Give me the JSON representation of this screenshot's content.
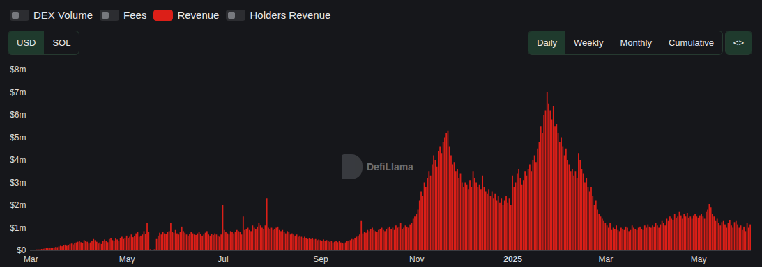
{
  "chart_data": {
    "type": "bar",
    "categories": [
      "Mar",
      null,
      null,
      null,
      null,
      null,
      null,
      null,
      null,
      null,
      null,
      null,
      null,
      null,
      null,
      null,
      null,
      null,
      null,
      null,
      null,
      null,
      null,
      null,
      null,
      null,
      null,
      null,
      null,
      null,
      null,
      null,
      null,
      null,
      null,
      null,
      null,
      null,
      null,
      null,
      null,
      null,
      null,
      null,
      null,
      null,
      null,
      null,
      null,
      null,
      null,
      null,
      null,
      null,
      null,
      null,
      null,
      null,
      null,
      null,
      null,
      "May",
      null,
      null,
      null,
      null,
      null,
      null,
      null,
      null,
      null,
      null,
      null,
      null,
      null,
      null,
      null,
      null,
      null,
      null,
      null,
      null,
      null,
      null,
      null,
      null,
      null,
      null,
      null,
      null,
      null,
      null,
      null,
      null,
      null,
      null,
      null,
      null,
      null,
      null,
      null,
      null,
      null,
      null,
      null,
      null,
      null,
      null,
      null,
      null,
      null,
      null,
      null,
      null,
      null,
      null,
      null,
      null,
      null,
      null,
      null,
      null,
      "Jul",
      null,
      null,
      null,
      null,
      null,
      null,
      null,
      null,
      null,
      null,
      null,
      null,
      null,
      null,
      null,
      null,
      null,
      null,
      null,
      null,
      null,
      null,
      null,
      null,
      null,
      null,
      null,
      null,
      null,
      null,
      null,
      null,
      null,
      null,
      null,
      null,
      null,
      null,
      null,
      null,
      null,
      null,
      null,
      null,
      null,
      null,
      null,
      null,
      null,
      null,
      null,
      null,
      null,
      null,
      null,
      null,
      null,
      null,
      null,
      null,
      null,
      "Sep",
      null,
      null,
      null,
      null,
      null,
      null,
      null,
      null,
      null,
      null,
      null,
      null,
      null,
      null,
      null,
      null,
      null,
      null,
      null,
      null,
      null,
      null,
      null,
      null,
      null,
      null,
      null,
      null,
      null,
      null,
      null,
      null,
      null,
      null,
      null,
      null,
      null,
      null,
      null,
      null,
      null,
      null,
      null,
      null,
      null,
      null,
      null,
      null,
      null,
      null,
      null,
      null,
      null,
      null,
      null,
      null,
      null,
      null,
      null,
      null,
      "Nov",
      null,
      null,
      null,
      null,
      null,
      null,
      null,
      null,
      null,
      null,
      null,
      null,
      null,
      null,
      null,
      null,
      null,
      null,
      null,
      null,
      null,
      null,
      null,
      null,
      null,
      null,
      null,
      null,
      null,
      null,
      null,
      null,
      null,
      null,
      null,
      null,
      null,
      null,
      null,
      null,
      null,
      null,
      null,
      null,
      null,
      null,
      null,
      null,
      null,
      null,
      null,
      null,
      null,
      null,
      null,
      null,
      null,
      null,
      null,
      null,
      "2025",
      null,
      null,
      null,
      null,
      null,
      null,
      null,
      null,
      null,
      null,
      null,
      null,
      null,
      null,
      null,
      null,
      null,
      null,
      null,
      null,
      null,
      null,
      null,
      null,
      null,
      null,
      null,
      null,
      null,
      null,
      null,
      null,
      null,
      null,
      null,
      null,
      null,
      null,
      null,
      null,
      null,
      null,
      null,
      null,
      null,
      null,
      null,
      null,
      null,
      null,
      null,
      null,
      null,
      null,
      null,
      null,
      null,
      null,
      "Mar",
      null,
      null,
      null,
      null,
      null,
      null,
      null,
      null,
      null,
      null,
      null,
      null,
      null,
      null,
      null,
      null,
      null,
      null,
      null,
      null,
      null,
      null,
      null,
      null,
      null,
      null,
      null,
      null,
      null,
      null,
      null,
      null,
      null,
      null,
      null,
      null,
      null,
      null,
      null,
      null,
      null,
      null,
      null,
      null,
      null,
      null,
      null,
      null,
      null,
      null,
      null,
      null,
      null,
      null,
      null,
      null,
      null,
      null,
      "May",
      null,
      null,
      null,
      null,
      null,
      null,
      null,
      null,
      null,
      null,
      null,
      null,
      null,
      null,
      null,
      null,
      null,
      null,
      null,
      null,
      null,
      null,
      null,
      null,
      null,
      null,
      null,
      null,
      null,
      null,
      null,
      null,
      null
    ],
    "series": [
      {
        "name": "Revenue",
        "color": "#dc1f18",
        "values": [
          0.01,
          0.02,
          0.02,
          0.03,
          0.04,
          0.04,
          0.05,
          0.06,
          0.07,
          0.08,
          0.1,
          0.09,
          0.11,
          0.12,
          0.1,
          0.13,
          0.15,
          0.14,
          0.17,
          0.2,
          0.18,
          0.22,
          0.25,
          0.2,
          0.24,
          0.28,
          0.3,
          0.26,
          0.32,
          0.35,
          0.38,
          0.42,
          0.36,
          0.33,
          0.45,
          0.4,
          0.38,
          0.3,
          0.35,
          0.42,
          0.5,
          0.45,
          0.38,
          0.3,
          0.35,
          0.28,
          0.4,
          0.48,
          0.42,
          0.36,
          0.5,
          0.55,
          0.45,
          0.4,
          0.52,
          0.48,
          0.42,
          0.55,
          0.6,
          0.5,
          0.55,
          0.65,
          0.55,
          0.6,
          0.7,
          0.58,
          0.62,
          0.75,
          0.8,
          0.6,
          0.65,
          0.7,
          0.85,
          0.72,
          1.2,
          0.8,
          0.05,
          0.03,
          0.04,
          0.06,
          0.5,
          0.65,
          0.78,
          0.7,
          0.8,
          0.75,
          0.72,
          0.8,
          0.85,
          1.22,
          0.8,
          0.78,
          0.9,
          0.75,
          0.7,
          0.8,
          1.05,
          0.85,
          0.78,
          0.7,
          0.65,
          0.72,
          0.8,
          0.75,
          0.7,
          0.68,
          0.75,
          0.8,
          0.72,
          0.65,
          0.7,
          0.78,
          0.85,
          0.7,
          0.65,
          0.72,
          0.68,
          0.75,
          0.7,
          0.65,
          0.6,
          0.7,
          2.0,
          0.9,
          0.8,
          0.75,
          0.7,
          0.85,
          0.8,
          0.75,
          0.8,
          0.9,
          0.85,
          0.8,
          0.7,
          1.5,
          0.9,
          0.95,
          1.0,
          0.9,
          0.85,
          1.1,
          1.0,
          0.95,
          1.05,
          1.2,
          1.1,
          1.0,
          0.95,
          1.1,
          2.3,
          1.0,
          0.95,
          1.0,
          0.9,
          0.95,
          1.0,
          1.05,
          0.9,
          0.85,
          0.9,
          0.8,
          0.75,
          0.85,
          0.8,
          0.7,
          0.75,
          0.7,
          0.65,
          0.7,
          0.6,
          0.65,
          0.6,
          0.55,
          0.6,
          0.55,
          0.5,
          0.55,
          0.5,
          0.52,
          0.48,
          0.5,
          0.45,
          0.48,
          0.45,
          0.42,
          0.48,
          0.4,
          0.45,
          0.42,
          0.38,
          0.4,
          0.35,
          0.38,
          0.42,
          0.36,
          0.4,
          0.35,
          0.32,
          0.3,
          0.35,
          0.4,
          0.42,
          0.45,
          0.5,
          0.48,
          0.55,
          0.6,
          0.65,
          0.7,
          1.3,
          0.75,
          0.8,
          0.78,
          0.9,
          0.85,
          0.95,
          1.0,
          0.9,
          0.85,
          0.8,
          0.9,
          0.95,
          1.0,
          0.9,
          0.85,
          0.95,
          1.0,
          1.05,
          0.95,
          1.0,
          0.9,
          1.1,
          1.0,
          1.05,
          1.2,
          0.95,
          1.0,
          1.1,
          1.05,
          1.0,
          1.15,
          1.2,
          1.4,
          1.5,
          1.6,
          1.8,
          2.2,
          2.6,
          2.4,
          3.0,
          2.8,
          3.2,
          3.5,
          3.3,
          3.8,
          4.2,
          4.0,
          3.7,
          4.4,
          4.6,
          4.3,
          4.8,
          5.0,
          5.2,
          5.3,
          4.6,
          4.2,
          3.8,
          3.9,
          3.5,
          3.6,
          3.2,
          3.4,
          3.0,
          2.8,
          3.0,
          2.9,
          2.7,
          3.1,
          2.8,
          3.5,
          3.2,
          3.0,
          2.8,
          2.9,
          2.7,
          3.3,
          2.8,
          2.6,
          2.5,
          2.7,
          2.4,
          2.6,
          2.3,
          2.5,
          2.2,
          2.4,
          2.1,
          2.3,
          2.0,
          2.2,
          2.4,
          2.1,
          2.3,
          2.0,
          3.3,
          2.8,
          3.0,
          3.4,
          3.6,
          3.2,
          2.9,
          3.1,
          3.5,
          3.3,
          3.6,
          3.8,
          3.5,
          4.0,
          4.2,
          3.9,
          4.5,
          4.8,
          5.5,
          5.2,
          6.0,
          6.2,
          7.0,
          6.5,
          6.2,
          5.8,
          6.4,
          5.5,
          5.6,
          5.2,
          4.8,
          5.0,
          4.6,
          4.2,
          4.5,
          4.0,
          3.8,
          3.5,
          3.6,
          3.3,
          3.5,
          3.2,
          4.3,
          4.0,
          3.6,
          3.4,
          3.0,
          3.2,
          2.8,
          2.6,
          2.8,
          2.4,
          2.0,
          2.2,
          1.8,
          1.6,
          1.5,
          1.4,
          1.3,
          1.2,
          1.1,
          1.0,
          1.2,
          0.9,
          1.0,
          0.95,
          1.1,
          0.9,
          0.85,
          1.0,
          0.95,
          0.9,
          1.05,
          1.0,
          0.85,
          0.9,
          1.1,
          1.0,
          0.95,
          0.9,
          1.0,
          1.05,
          0.95,
          0.9,
          1.1,
          1.0,
          1.15,
          1.05,
          1.0,
          1.1,
          1.05,
          1.2,
          1.1,
          1.0,
          1.15,
          1.3,
          1.2,
          1.1,
          1.4,
          1.3,
          1.5,
          1.4,
          1.35,
          1.6,
          1.45,
          1.5,
          1.7,
          1.55,
          1.4,
          1.6,
          1.5,
          1.65,
          1.45,
          1.5,
          1.4,
          1.55,
          1.6,
          1.5,
          1.45,
          1.55,
          1.6,
          1.5,
          1.4,
          1.7,
          1.8,
          2.05,
          1.9,
          1.6,
          1.5,
          1.3,
          1.4,
          1.2,
          1.1,
          1.25,
          1.3,
          1.15,
          1.0,
          1.2,
          1.35,
          1.1,
          1.0,
          1.25,
          1.3,
          1.15,
          1.0,
          1.1,
          0.9,
          1.05,
          0.85,
          1.2,
          1.0,
          1.15
        ]
      }
    ],
    "ylim": [
      0,
      8
    ],
    "yticks": [
      {
        "value": 0,
        "label": "$0"
      },
      {
        "value": 1,
        "label": "$1m"
      },
      {
        "value": 2,
        "label": "$2m"
      },
      {
        "value": 3,
        "label": "$3m"
      },
      {
        "value": 4,
        "label": "$4m"
      },
      {
        "value": 5,
        "label": "$5m"
      },
      {
        "value": 6,
        "label": "$6m"
      },
      {
        "value": 7,
        "label": "$7m"
      },
      {
        "value": 8,
        "label": "$8m"
      }
    ],
    "grid": false
  },
  "controls": {
    "toggles": [
      "DEX Volume",
      "Fees",
      "Revenue",
      "Holders Revenue"
    ],
    "currency": {
      "options": [
        "USD",
        "SOL"
      ],
      "active": "USD"
    },
    "period": {
      "options": [
        "Daily",
        "Weekly",
        "Monthly",
        "Cumulative"
      ],
      "active": "Daily"
    },
    "embed": "<>"
  },
  "watermark": "DefiLlama"
}
